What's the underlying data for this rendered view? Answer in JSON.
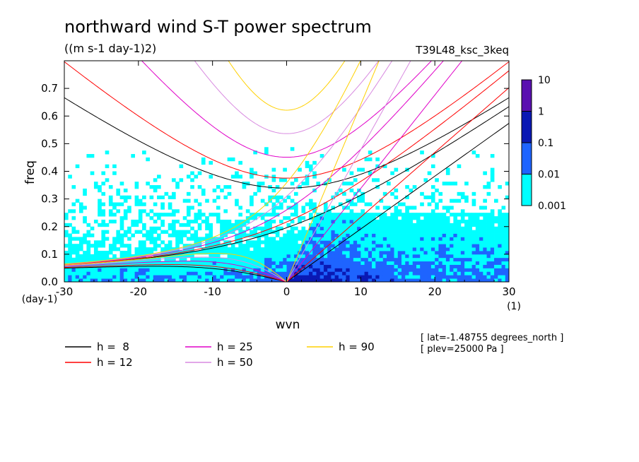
{
  "chart_data": {
    "type": "heatmap",
    "title": "northward wind S-T power spectrum",
    "subtitle": "((m s-1 day-1)2)",
    "run_label": "T39L48_ksc_3keq",
    "xlabel": "wvn",
    "xunit": "(1)",
    "ylabel": "freq",
    "yunit": "(day-1)",
    "xlim": [
      -30,
      30
    ],
    "ylim": [
      0,
      0.8
    ],
    "xticks": [
      -30,
      -20,
      -10,
      0,
      10,
      20,
      30
    ],
    "xtick_labels": [
      "-30",
      "-20",
      "-10",
      "0",
      "10",
      "20",
      "30"
    ],
    "yticks": [
      0,
      0.1,
      0.2,
      0.3,
      0.4,
      0.5,
      0.6,
      0.7
    ],
    "ytick_labels": [
      "0.0",
      "0.1",
      "0.2",
      "0.3",
      "0.4",
      "0.5",
      "0.6",
      "0.7"
    ],
    "colorbar": {
      "scale": "log",
      "levels": [
        0.001,
        0.01,
        0.1,
        1,
        10
      ],
      "labels": [
        "0.001",
        "0.01",
        "0.1",
        "1",
        "10"
      ],
      "colors": [
        "#00ffff",
        "#1e64ff",
        "#0a19b4",
        "#5a10b0"
      ]
    },
    "dispersion_curves": [
      {
        "name": "h =  8",
        "h": 8,
        "color": "#000000"
      },
      {
        "name": "h = 12",
        "h": 12,
        "color": "#ff0000"
      },
      {
        "name": "h = 25",
        "h": 25,
        "color": "#e000c8"
      },
      {
        "name": "h = 50",
        "h": 50,
        "color": "#d88ae0"
      },
      {
        "name": "h = 90",
        "h": 90,
        "color": "#ffd000"
      }
    ],
    "legend_position": "bottom-left",
    "annotations": [
      "[ lat=-1.48755 degrees_north ]",
      "[ plev=25000 Pa ]"
    ]
  }
}
